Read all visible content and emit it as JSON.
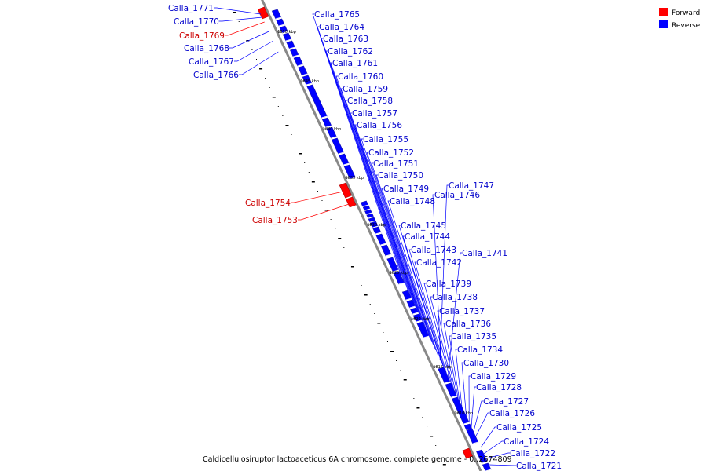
{
  "legend": [
    {
      "label": "Forward",
      "color": "#ff0000"
    },
    {
      "label": "Reverse",
      "color": "#0000ff"
    }
  ],
  "caption": "Caldicellulosiruptor lactoaceticus 6A chromosome, complete genome - 0..2674809",
  "colors": {
    "forward": "#ff0000",
    "reverse": "#0000ff",
    "axis": "#888888",
    "reverse_dark": "#1a1aa8",
    "reverse_light": "#3333ff"
  },
  "ticks": [
    "1850 kbp",
    "1845 kbp",
    "1840 kbp",
    "1835 kbp",
    "1830 kbp",
    "1825 kbp",
    "1820 kbp",
    "1815 kbp",
    "1810 kbp"
  ],
  "genes_left": [
    {
      "id": "Calla_1771",
      "strand": "reverse"
    },
    {
      "id": "Calla_1770",
      "strand": "reverse"
    },
    {
      "id": "Calla_1769",
      "strand": "forward"
    },
    {
      "id": "Calla_1768",
      "strand": "reverse"
    },
    {
      "id": "Calla_1767",
      "strand": "reverse"
    },
    {
      "id": "Calla_1766",
      "strand": "reverse"
    },
    {
      "id": "Calla_1754",
      "strand": "forward"
    },
    {
      "id": "Calla_1753",
      "strand": "forward"
    }
  ],
  "genes_right": [
    {
      "id": "Calla_1765",
      "strand": "reverse"
    },
    {
      "id": "Calla_1764",
      "strand": "reverse"
    },
    {
      "id": "Calla_1763",
      "strand": "reverse"
    },
    {
      "id": "Calla_1762",
      "strand": "reverse"
    },
    {
      "id": "Calla_1761",
      "strand": "reverse"
    },
    {
      "id": "Calla_1760",
      "strand": "reverse"
    },
    {
      "id": "Calla_1759",
      "strand": "reverse"
    },
    {
      "id": "Calla_1758",
      "strand": "reverse"
    },
    {
      "id": "Calla_1757",
      "strand": "reverse"
    },
    {
      "id": "Calla_1756",
      "strand": "reverse"
    },
    {
      "id": "Calla_1755",
      "strand": "reverse"
    },
    {
      "id": "Calla_1752",
      "strand": "reverse"
    },
    {
      "id": "Calla_1751",
      "strand": "reverse"
    },
    {
      "id": "Calla_1750",
      "strand": "reverse"
    },
    {
      "id": "Calla_1749",
      "strand": "reverse"
    },
    {
      "id": "Calla_1748",
      "strand": "reverse"
    },
    {
      "id": "Calla_1747",
      "strand": "reverse"
    },
    {
      "id": "Calla_1746",
      "strand": "reverse"
    },
    {
      "id": "Calla_1745",
      "strand": "reverse"
    },
    {
      "id": "Calla_1744",
      "strand": "reverse"
    },
    {
      "id": "Calla_1743",
      "strand": "reverse"
    },
    {
      "id": "Calla_1742",
      "strand": "reverse"
    },
    {
      "id": "Calla_1741",
      "strand": "reverse"
    },
    {
      "id": "Calla_1739",
      "strand": "reverse"
    },
    {
      "id": "Calla_1738",
      "strand": "reverse"
    },
    {
      "id": "Calla_1737",
      "strand": "reverse"
    },
    {
      "id": "Calla_1736",
      "strand": "reverse"
    },
    {
      "id": "Calla_1735",
      "strand": "reverse"
    },
    {
      "id": "Calla_1734",
      "strand": "reverse"
    },
    {
      "id": "Calla_1730",
      "strand": "reverse"
    },
    {
      "id": "Calla_1729",
      "strand": "reverse"
    },
    {
      "id": "Calla_1728",
      "strand": "reverse"
    },
    {
      "id": "Calla_1727",
      "strand": "reverse"
    },
    {
      "id": "Calla_1726",
      "strand": "reverse"
    },
    {
      "id": "Calla_1725",
      "strand": "reverse"
    },
    {
      "id": "Calla_1724",
      "strand": "reverse"
    },
    {
      "id": "Calla_1722",
      "strand": "reverse"
    },
    {
      "id": "Calla_1721",
      "strand": "reverse"
    }
  ]
}
